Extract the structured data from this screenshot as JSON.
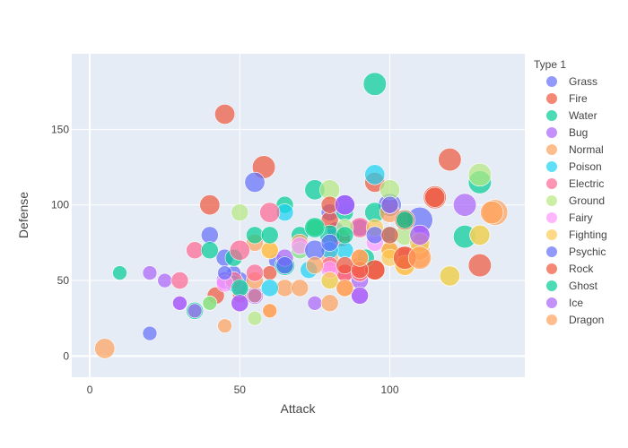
{
  "chart_data": {
    "type": "scatter",
    "xlabel": "Attack",
    "ylabel": "Defense",
    "xlim": [
      -6,
      145
    ],
    "ylim": [
      -14,
      200
    ],
    "xticks": [
      0,
      50,
      100
    ],
    "yticks": [
      0,
      50,
      100,
      150
    ],
    "legend_title": "Type 1",
    "legend_position": "right",
    "series": [
      {
        "name": "Grass",
        "color": "#636efa",
        "points": [
          [
            20,
            15,
            5
          ],
          [
            45,
            65,
            6
          ],
          [
            50,
            50,
            6
          ],
          [
            49,
            49,
            5
          ],
          [
            62,
            63,
            5
          ],
          [
            82,
            83,
            6
          ],
          [
            100,
            100,
            8
          ],
          [
            110,
            90,
            9
          ],
          [
            80,
            95,
            6
          ],
          [
            90,
            85,
            6
          ],
          [
            48,
            55,
            5
          ],
          [
            65,
            60,
            6
          ]
        ]
      },
      {
        "name": "Fire",
        "color": "#ef553b",
        "points": [
          [
            45,
            160,
            7
          ],
          [
            58,
            125,
            8
          ],
          [
            40,
            100,
            7
          ],
          [
            80,
            90,
            6
          ],
          [
            95,
            115,
            7
          ],
          [
            120,
            130,
            8
          ],
          [
            115,
            105,
            8
          ],
          [
            130,
            60,
            8
          ],
          [
            105,
            65,
            8
          ],
          [
            95,
            57,
            7
          ],
          [
            85,
            55,
            6
          ],
          [
            100,
            70,
            6
          ],
          [
            60,
            55,
            5
          ],
          [
            90,
            60,
            6
          ],
          [
            50,
            40,
            5
          ],
          [
            42,
            40,
            6
          ],
          [
            84,
            78,
            6
          ]
        ]
      },
      {
        "name": "Water",
        "color": "#00cc96",
        "points": [
          [
            95,
            180,
            8
          ],
          [
            75,
            110,
            7
          ],
          [
            65,
            100,
            6
          ],
          [
            130,
            115,
            8
          ],
          [
            125,
            79,
            8
          ],
          [
            10,
            55,
            5
          ],
          [
            35,
            30,
            6
          ],
          [
            40,
            35,
            5
          ],
          [
            50,
            45,
            6
          ],
          [
            65,
            60,
            7
          ],
          [
            80,
            80,
            7
          ],
          [
            85,
            95,
            6
          ],
          [
            95,
            95,
            7
          ],
          [
            105,
            90,
            7
          ],
          [
            75,
            85,
            6
          ],
          [
            70,
            80,
            6
          ],
          [
            48,
            65,
            6
          ],
          [
            92,
            65,
            6
          ],
          [
            110,
            75,
            6
          ]
        ]
      },
      {
        "name": "Bug",
        "color": "#ab63fa",
        "points": [
          [
            20,
            55,
            5
          ],
          [
            25,
            50,
            5
          ],
          [
            30,
            35,
            5
          ],
          [
            35,
            30,
            5
          ],
          [
            45,
            50,
            6
          ],
          [
            50,
            35,
            6
          ],
          [
            55,
            40,
            6
          ],
          [
            90,
            40,
            6
          ],
          [
            90,
            50,
            6
          ],
          [
            85,
            100,
            7
          ],
          [
            125,
            100,
            8
          ],
          [
            110,
            80,
            7
          ],
          [
            80,
            70,
            6
          ],
          [
            65,
            65,
            6
          ],
          [
            75,
            35,
            5
          ]
        ]
      },
      {
        "name": "Normal",
        "color": "#ffa15a",
        "points": [
          [
            5,
            5,
            7
          ],
          [
            45,
            20,
            5
          ],
          [
            60,
            30,
            5
          ],
          [
            55,
            50,
            6
          ],
          [
            65,
            45,
            6
          ],
          [
            70,
            45,
            6
          ],
          [
            80,
            35,
            6
          ],
          [
            85,
            45,
            6
          ],
          [
            90,
            55,
            6
          ],
          [
            100,
            95,
            7
          ],
          [
            110,
            65,
            7
          ],
          [
            110,
            70,
            7
          ],
          [
            105,
            60,
            7
          ],
          [
            135,
            95,
            9
          ],
          [
            80,
            65,
            6
          ],
          [
            90,
            65,
            6
          ],
          [
            60,
            70,
            6
          ],
          [
            70,
            75,
            6
          ],
          [
            55,
            75,
            6
          ]
        ]
      },
      {
        "name": "Poison",
        "color": "#19d3f3",
        "points": [
          [
            95,
            120,
            7
          ],
          [
            65,
            95,
            6
          ],
          [
            70,
            70,
            6
          ],
          [
            60,
            45,
            6
          ],
          [
            55,
            40,
            5
          ],
          [
            85,
            70,
            6
          ],
          [
            73,
            57,
            6
          ],
          [
            48,
            48,
            6
          ],
          [
            100,
            80,
            6
          ],
          [
            80,
            70,
            6
          ]
        ]
      },
      {
        "name": "Electric",
        "color": "#ff6692",
        "points": [
          [
            30,
            50,
            6
          ],
          [
            35,
            70,
            6
          ],
          [
            50,
            70,
            7
          ],
          [
            55,
            55,
            6
          ],
          [
            60,
            95,
            7
          ],
          [
            80,
            60,
            6
          ],
          [
            85,
            55,
            6
          ],
          [
            90,
            85,
            7
          ],
          [
            90,
            55,
            6
          ],
          [
            100,
            100,
            6
          ],
          [
            55,
            40,
            5
          ],
          [
            48,
            50,
            6
          ]
        ]
      },
      {
        "name": "Ground",
        "color": "#b6e880",
        "points": [
          [
            55,
            25,
            5
          ],
          [
            50,
            95,
            6
          ],
          [
            75,
            85,
            6
          ],
          [
            80,
            110,
            7
          ],
          [
            100,
            110,
            7
          ],
          [
            130,
            120,
            8
          ],
          [
            130,
            80,
            7
          ],
          [
            120,
            53,
            7
          ],
          [
            80,
            50,
            6
          ],
          [
            85,
            85,
            6
          ],
          [
            105,
            80,
            7
          ],
          [
            70,
            70,
            6
          ],
          [
            40,
            35,
            5
          ]
        ]
      },
      {
        "name": "Fairy",
        "color": "#ff97ff",
        "points": [
          [
            45,
            48,
            6
          ],
          [
            70,
            73,
            6
          ],
          [
            50,
            45,
            5
          ],
          [
            95,
            75,
            6
          ],
          [
            80,
            57,
            6
          ]
        ]
      },
      {
        "name": "Fighting",
        "color": "#fecb52",
        "points": [
          [
            105,
            60,
            7
          ],
          [
            130,
            80,
            7
          ],
          [
            120,
            53,
            7
          ],
          [
            80,
            50,
            6
          ],
          [
            100,
            70,
            6
          ],
          [
            95,
            85,
            6
          ],
          [
            60,
            70,
            6
          ],
          [
            110,
            75,
            7
          ],
          [
            100,
            65,
            6
          ]
        ]
      },
      {
        "name": "Psychic",
        "color": "#636efa",
        "points": [
          [
            40,
            80,
            6
          ],
          [
            55,
            115,
            7
          ],
          [
            65,
            60,
            6
          ],
          [
            75,
            70,
            7
          ],
          [
            85,
            100,
            7
          ],
          [
            100,
            100,
            6
          ],
          [
            45,
            55,
            5
          ],
          [
            95,
            80,
            6
          ],
          [
            80,
            75,
            6
          ]
        ]
      },
      {
        "name": "Rock",
        "color": "#ef553b",
        "points": [
          [
            80,
            100,
            6
          ],
          [
            105,
            90,
            7
          ],
          [
            115,
            105,
            7
          ],
          [
            95,
            57,
            7
          ],
          [
            100,
            80,
            6
          ],
          [
            85,
            60,
            6
          ],
          [
            90,
            57,
            6
          ],
          [
            105,
            65,
            8
          ]
        ]
      },
      {
        "name": "Ghost",
        "color": "#00cc96",
        "points": [
          [
            40,
            70,
            6
          ],
          [
            55,
            80,
            6
          ],
          [
            50,
            45,
            6
          ],
          [
            75,
            85,
            7
          ],
          [
            85,
            80,
            6
          ],
          [
            105,
            90,
            6
          ],
          [
            60,
            80,
            6
          ]
        ]
      },
      {
        "name": "Ice",
        "color": "#ab63fa",
        "points": [
          [
            30,
            35,
            5
          ],
          [
            50,
            35,
            6
          ],
          [
            85,
            100,
            7
          ],
          [
            110,
            80,
            7
          ],
          [
            90,
            40,
            6
          ]
        ]
      },
      {
        "name": "Dragon",
        "color": "#ffa15a",
        "points": [
          [
            60,
            30,
            5
          ],
          [
            85,
            45,
            6
          ],
          [
            110,
            65,
            8
          ],
          [
            134,
            95,
            8
          ],
          [
            90,
            65,
            6
          ],
          [
            75,
            60,
            6
          ]
        ]
      }
    ]
  }
}
